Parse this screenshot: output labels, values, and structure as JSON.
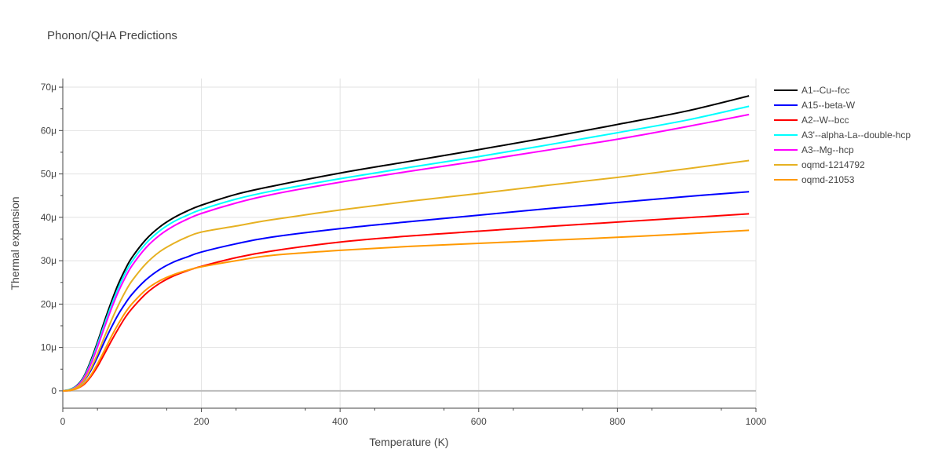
{
  "chart_data": {
    "type": "line",
    "title": "Phonon/QHA Predictions",
    "xlabel": "Temperature (K)",
    "ylabel": "Thermal expansion",
    "xlim": [
      0,
      1000
    ],
    "ylim": [
      -4,
      72
    ],
    "y_unit_suffix": "μ",
    "xticks": [
      0,
      200,
      400,
      600,
      800,
      1000
    ],
    "xtick_labels": [
      "0",
      "200",
      "400",
      "600",
      "800",
      "1000"
    ],
    "yticks": [
      0,
      10,
      20,
      30,
      40,
      50,
      60,
      70
    ],
    "ytick_labels": [
      "0",
      "10μ",
      "20μ",
      "30μ",
      "40μ",
      "50μ",
      "60μ",
      "70μ"
    ],
    "grid": true,
    "legend_position": "top-right",
    "x": [
      0,
      10,
      20,
      30,
      40,
      50,
      60,
      70,
      80,
      90,
      100,
      120,
      140,
      160,
      180,
      200,
      250,
      300,
      400,
      500,
      600,
      700,
      800,
      900,
      990
    ],
    "series": [
      {
        "name": "A1--Cu--fcc",
        "color": "#000000",
        "values": [
          0,
          0.3,
          1.2,
          3.2,
          6.8,
          11.2,
          16.0,
          20.5,
          24.6,
          28.0,
          30.8,
          34.9,
          37.8,
          39.9,
          41.5,
          42.8,
          45.3,
          47.1,
          50.2,
          52.9,
          55.6,
          58.4,
          61.4,
          64.5,
          68.0
        ]
      },
      {
        "name": "A15--beta-W",
        "color": "#0000ff",
        "values": [
          0,
          0.2,
          0.8,
          2.2,
          4.6,
          7.8,
          11.3,
          14.6,
          17.6,
          20.1,
          22.3,
          25.6,
          28.0,
          29.7,
          30.9,
          32.0,
          33.9,
          35.4,
          37.4,
          39.0,
          40.5,
          42.0,
          43.4,
          44.8,
          45.9
        ]
      },
      {
        "name": "A2--W--bcc",
        "color": "#ff0000",
        "values": [
          0,
          0.1,
          0.5,
          1.4,
          3.2,
          5.6,
          8.5,
          11.5,
          14.3,
          16.9,
          19.0,
          22.4,
          24.8,
          26.5,
          27.7,
          28.7,
          30.7,
          32.2,
          34.3,
          35.7,
          36.8,
          37.9,
          38.9,
          39.9,
          40.8
        ]
      },
      {
        "name": "A3'--alpha-La--double-hcp",
        "color": "#00ffff",
        "values": [
          0,
          0.3,
          1.1,
          3.0,
          6.4,
          10.7,
          15.3,
          19.7,
          23.7,
          27.1,
          29.9,
          34.0,
          36.9,
          39.0,
          40.5,
          41.8,
          44.2,
          46.0,
          48.9,
          51.5,
          54.0,
          56.7,
          59.5,
          62.4,
          65.6
        ]
      },
      {
        "name": "A3--Mg--hcp",
        "color": "#ff00ff",
        "values": [
          0,
          0.2,
          1.0,
          2.8,
          6.0,
          10.1,
          14.6,
          18.9,
          22.8,
          26.1,
          28.9,
          33.0,
          35.9,
          38.0,
          39.6,
          40.9,
          43.3,
          45.2,
          48.1,
          50.6,
          53.0,
          55.5,
          58.0,
          60.9,
          63.7
        ]
      },
      {
        "name": "oqmd-1214792",
        "color": "#e6b122",
        "values": [
          0,
          0.2,
          0.8,
          2.3,
          5.0,
          8.5,
          12.4,
          16.2,
          19.7,
          22.8,
          25.4,
          29.3,
          32.1,
          34.0,
          35.5,
          36.6,
          38.0,
          39.4,
          41.7,
          43.7,
          45.5,
          47.4,
          49.2,
          51.2,
          53.1
        ]
      },
      {
        "name": "oqmd-21053",
        "color": "#ff9900",
        "values": [
          0,
          0.1,
          0.5,
          1.6,
          3.5,
          6.2,
          9.3,
          12.5,
          15.4,
          18.0,
          20.1,
          23.3,
          25.4,
          26.8,
          27.8,
          28.6,
          30.0,
          31.2,
          32.4,
          33.3,
          34.0,
          34.7,
          35.4,
          36.2,
          37.0
        ]
      }
    ]
  }
}
